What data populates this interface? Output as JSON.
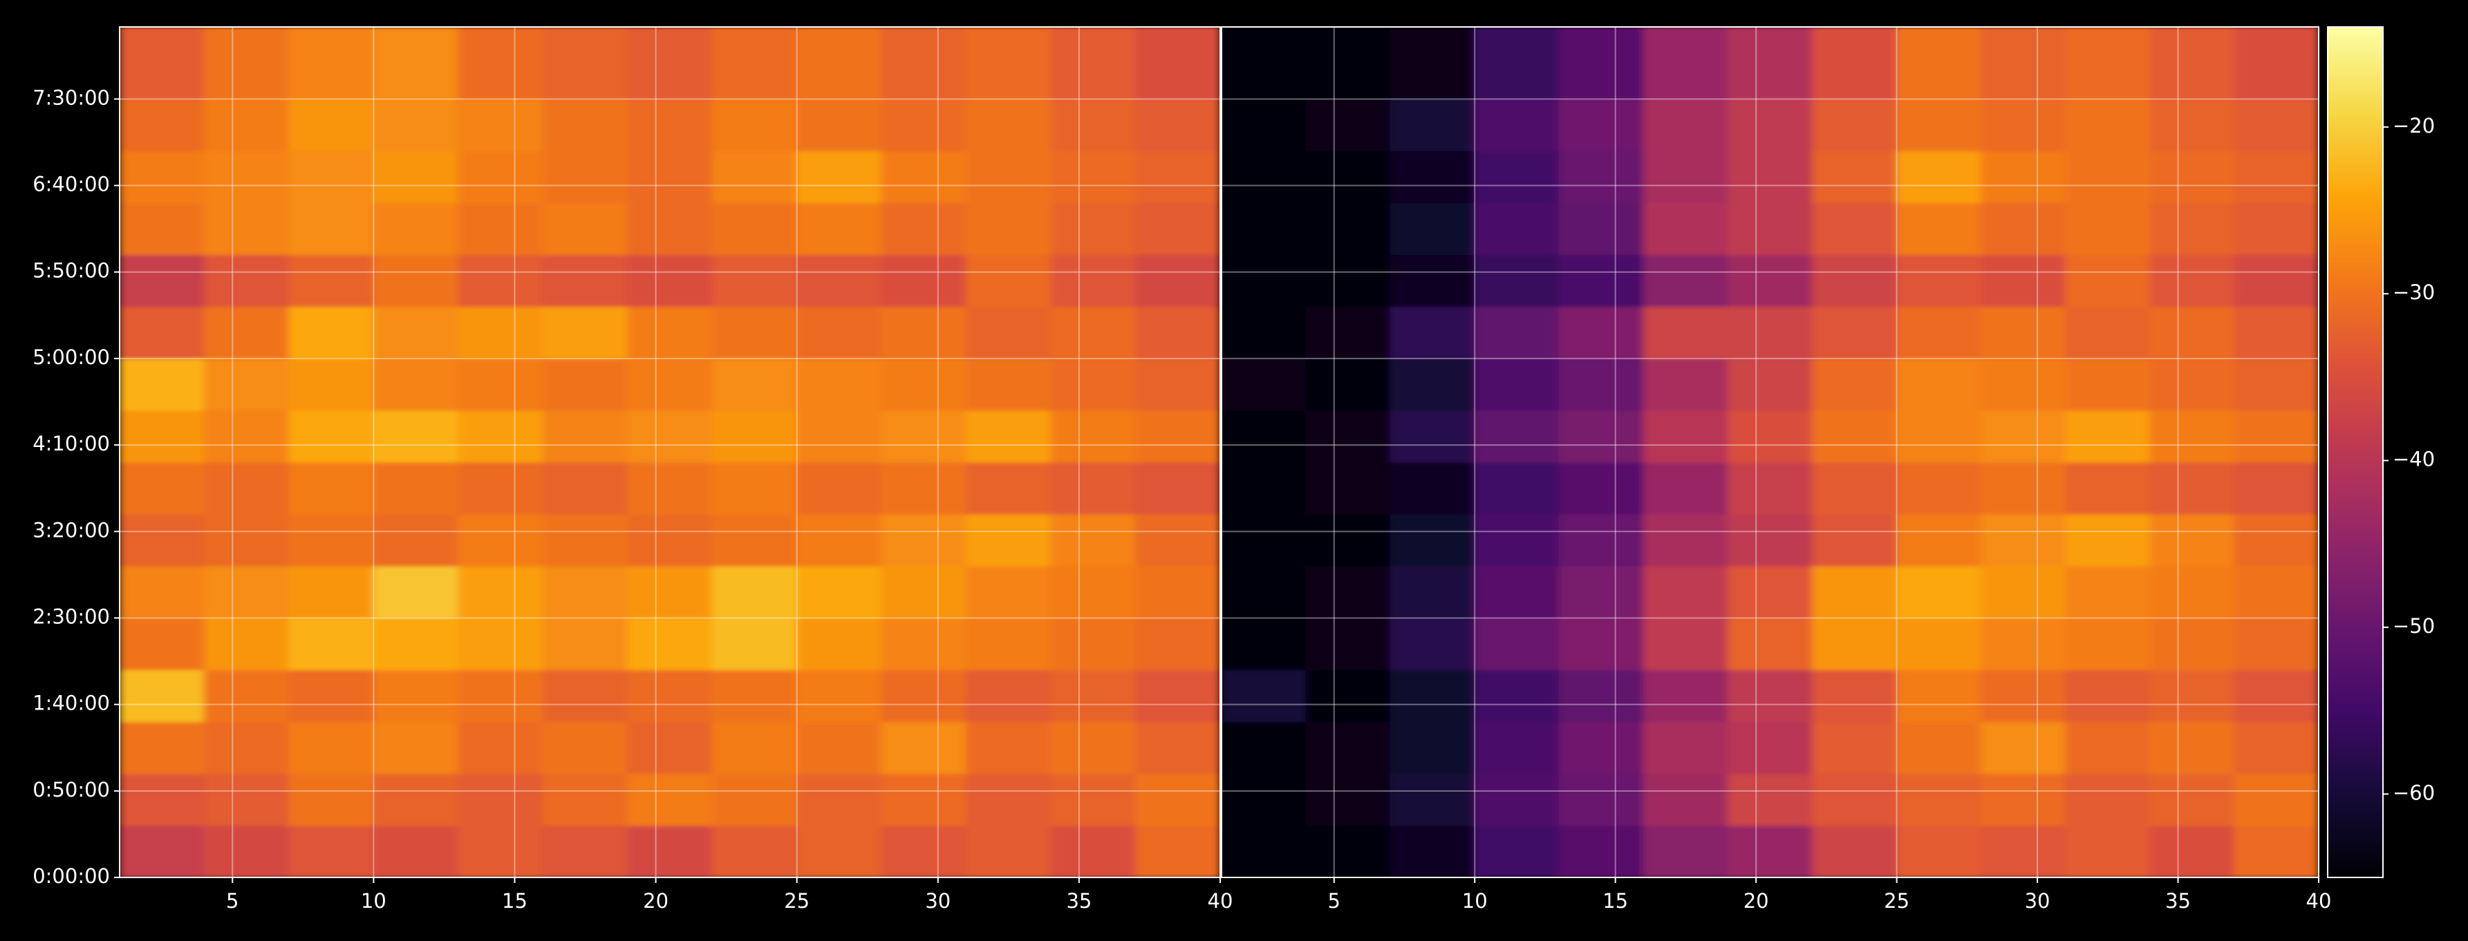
{
  "chart_data": [
    {
      "type": "heatmap",
      "colormap": "inferno",
      "grid": true,
      "xlim": [
        1,
        40
      ],
      "ylim": [
        0,
        29500
      ],
      "xticks": [
        5,
        10,
        15,
        20,
        25,
        30,
        35,
        40
      ],
      "yticks": [
        {
          "value": 0,
          "label": "0:00:00"
        },
        {
          "value": 3000,
          "label": "0:50:00"
        },
        {
          "value": 6000,
          "label": "1:40:00"
        },
        {
          "value": 9000,
          "label": "2:30:00"
        },
        {
          "value": 12000,
          "label": "3:20:00"
        },
        {
          "value": 15000,
          "label": "4:10:00"
        },
        {
          "value": 18000,
          "label": "5:00:00"
        },
        {
          "value": 21000,
          "label": "5:50:00"
        },
        {
          "value": 24000,
          "label": "6:40:00"
        },
        {
          "value": 27000,
          "label": "7:30:00"
        }
      ],
      "xbins": [
        1,
        4,
        7,
        10,
        13,
        16,
        19,
        22,
        25,
        28,
        31,
        34,
        37,
        40
      ],
      "ybins": [
        0,
        1800,
        3600,
        5400,
        7200,
        9000,
        10800,
        12600,
        14400,
        16200,
        18000,
        19800,
        21600,
        23400,
        25200,
        27000,
        29500
      ],
      "z": [
        [
          -38,
          -36,
          -34,
          -35,
          -33,
          -34,
          -36,
          -33,
          -32,
          -34,
          -33,
          -35,
          -31
        ],
        [
          -34,
          -33,
          -30,
          -32,
          -33,
          -31,
          -29,
          -30,
          -32,
          -31,
          -33,
          -32,
          -30
        ],
        [
          -30,
          -31,
          -29,
          -28,
          -31,
          -30,
          -32,
          -29,
          -30,
          -27,
          -31,
          -30,
          -32
        ],
        [
          -22,
          -30,
          -31,
          -29,
          -30,
          -32,
          -31,
          -30,
          -29,
          -31,
          -33,
          -32,
          -34
        ],
        [
          -30,
          -26,
          -23,
          -24,
          -25,
          -27,
          -24,
          -22,
          -26,
          -28,
          -29,
          -30,
          -31
        ],
        [
          -28,
          -27,
          -26,
          -21,
          -25,
          -27,
          -26,
          -22,
          -24,
          -26,
          -28,
          -29,
          -30
        ],
        [
          -32,
          -31,
          -30,
          -31,
          -29,
          -30,
          -31,
          -30,
          -29,
          -27,
          -25,
          -28,
          -31
        ],
        [
          -30,
          -31,
          -29,
          -30,
          -31,
          -32,
          -30,
          -29,
          -31,
          -30,
          -32,
          -33,
          -34
        ],
        [
          -26,
          -28,
          -24,
          -23,
          -25,
          -28,
          -27,
          -26,
          -28,
          -27,
          -25,
          -29,
          -30
        ],
        [
          -23,
          -27,
          -26,
          -28,
          -29,
          -30,
          -29,
          -27,
          -28,
          -29,
          -30,
          -31,
          -32
        ],
        [
          -33,
          -30,
          -24,
          -27,
          -26,
          -25,
          -29,
          -30,
          -31,
          -30,
          -32,
          -31,
          -33
        ],
        [
          -38,
          -34,
          -32,
          -30,
          -33,
          -34,
          -35,
          -33,
          -34,
          -35,
          -31,
          -34,
          -36
        ],
        [
          -30,
          -28,
          -27,
          -28,
          -30,
          -29,
          -31,
          -30,
          -29,
          -31,
          -30,
          -32,
          -33
        ],
        [
          -29,
          -28,
          -27,
          -26,
          -29,
          -30,
          -31,
          -28,
          -25,
          -29,
          -30,
          -31,
          -32
        ],
        [
          -31,
          -29,
          -26,
          -27,
          -28,
          -30,
          -31,
          -29,
          -30,
          -31,
          -30,
          -32,
          -33
        ],
        [
          -33,
          -30,
          -28,
          -27,
          -31,
          -32,
          -33,
          -31,
          -30,
          -32,
          -31,
          -33,
          -35
        ]
      ]
    },
    {
      "type": "heatmap",
      "colormap": "inferno",
      "grid": true,
      "xlim": [
        1,
        40
      ],
      "ylim": [
        0,
        29500
      ],
      "xticks": [
        5,
        10,
        15,
        20,
        25,
        30,
        35,
        40
      ],
      "xbins": [
        1,
        4,
        7,
        10,
        13,
        16,
        19,
        22,
        25,
        28,
        31,
        34,
        37,
        40
      ],
      "ybins": [
        0,
        1800,
        3600,
        5400,
        7200,
        9000,
        10800,
        12600,
        14400,
        16200,
        18000,
        19800,
        21600,
        23400,
        25200,
        27000,
        29500
      ],
      "z": [
        [
          -64,
          -64,
          -62,
          -55,
          -52,
          -46,
          -44,
          -37,
          -33,
          -34,
          -33,
          -35,
          -31
        ],
        [
          -64,
          -63,
          -60,
          -53,
          -50,
          -43,
          -37,
          -34,
          -32,
          -31,
          -33,
          -32,
          -30
        ],
        [
          -64,
          -63,
          -61,
          -54,
          -49,
          -42,
          -40,
          -33,
          -30,
          -27,
          -31,
          -30,
          -32
        ],
        [
          -60,
          -64,
          -61,
          -55,
          -51,
          -44,
          -39,
          -34,
          -29,
          -31,
          -33,
          -32,
          -34
        ],
        [
          -64,
          -63,
          -58,
          -50,
          -47,
          -39,
          -32,
          -26,
          -26,
          -28,
          -29,
          -30,
          -31
        ],
        [
          -64,
          -63,
          -59,
          -52,
          -48,
          -39,
          -34,
          -26,
          -24,
          -26,
          -28,
          -29,
          -30
        ],
        [
          -64,
          -64,
          -61,
          -54,
          -50,
          -42,
          -39,
          -34,
          -29,
          -27,
          -25,
          -28,
          -31
        ],
        [
          -64,
          -63,
          -62,
          -55,
          -52,
          -44,
          -38,
          -33,
          -31,
          -30,
          -32,
          -33,
          -34
        ],
        [
          -64,
          -63,
          -58,
          -51,
          -48,
          -40,
          -35,
          -30,
          -28,
          -27,
          -25,
          -29,
          -30
        ],
        [
          -63,
          -64,
          -60,
          -53,
          -50,
          -42,
          -37,
          -31,
          -28,
          -29,
          -30,
          -31,
          -32
        ],
        [
          -64,
          -63,
          -57,
          -51,
          -47,
          -37,
          -37,
          -34,
          -31,
          -30,
          -32,
          -31,
          -33
        ],
        [
          -64,
          -64,
          -62,
          -56,
          -54,
          -46,
          -43,
          -37,
          -34,
          -35,
          -31,
          -34,
          -36
        ],
        [
          -64,
          -64,
          -61,
          -54,
          -51,
          -41,
          -39,
          -34,
          -29,
          -31,
          -30,
          -32,
          -33
        ],
        [
          -64,
          -64,
          -62,
          -55,
          -50,
          -42,
          -39,
          -32,
          -25,
          -29,
          -30,
          -31,
          -32
        ],
        [
          -64,
          -63,
          -60,
          -53,
          -49,
          -42,
          -39,
          -33,
          -30,
          -31,
          -30,
          -32,
          -33
        ],
        [
          -64,
          -64,
          -63,
          -56,
          -52,
          -44,
          -41,
          -35,
          -30,
          -32,
          -31,
          -33,
          -35
        ]
      ]
    },
    {
      "type": "colorbar",
      "colormap": "inferno",
      "clim": [
        -65,
        -14
      ],
      "ticks": [
        {
          "value": -60,
          "label": "−60"
        },
        {
          "value": -50,
          "label": "−50"
        },
        {
          "value": -40,
          "label": "−40"
        },
        {
          "value": -30,
          "label": "−30"
        },
        {
          "value": -20,
          "label": "−20"
        }
      ]
    }
  ]
}
